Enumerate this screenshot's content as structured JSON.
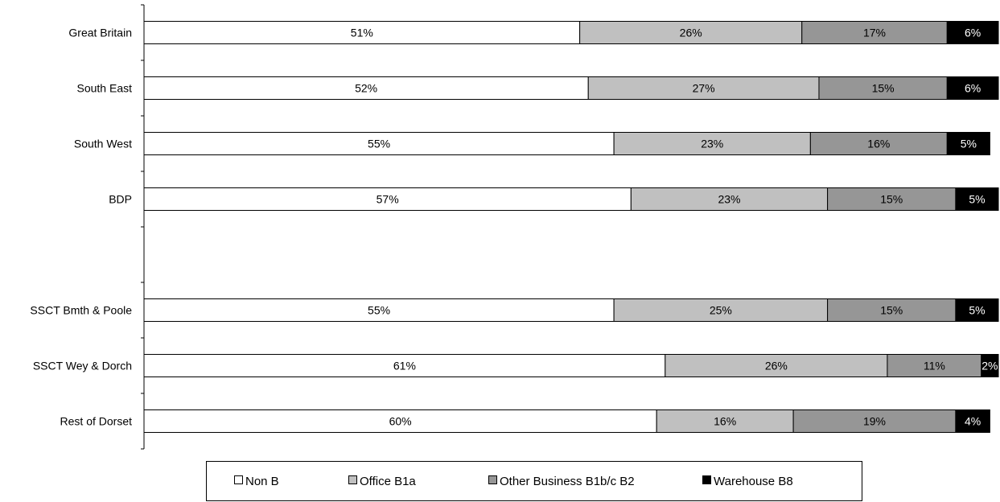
{
  "chart_data": {
    "type": "bar",
    "orientation": "horizontal",
    "stacked": "percent",
    "title": "",
    "xlabel": "",
    "ylabel": "",
    "xlim": [
      0,
      100
    ],
    "grid": false,
    "legend_position": "bottom",
    "categories": [
      "Great Britain",
      "South East",
      "South West",
      "BDP",
      "",
      "SSCT Bmth & Poole",
      "SSCT Wey & Dorch",
      "Rest of Dorset"
    ],
    "series": [
      {
        "name": "Non B",
        "color": "#ffffff",
        "text_color": "#000000",
        "values": [
          51,
          52,
          55,
          57,
          null,
          55,
          61,
          60
        ],
        "labels": [
          "51%",
          "52%",
          "55%",
          "57%",
          "",
          "55%",
          "61%",
          "60%"
        ]
      },
      {
        "name": "Office B1a",
        "color": "#c0c0c0",
        "text_color": "#000000",
        "values": [
          26,
          27,
          23,
          23,
          null,
          25,
          26,
          16
        ],
        "labels": [
          "26%",
          "27%",
          "23%",
          "23%",
          "",
          "25%",
          "26%",
          "16%"
        ]
      },
      {
        "name": "Other Business B1b/c B2",
        "color": "#969696",
        "text_color": "#000000",
        "values": [
          17,
          15,
          16,
          15,
          null,
          15,
          11,
          19
        ],
        "labels": [
          "17%",
          "15%",
          "16%",
          "15%",
          "",
          "15%",
          "11%",
          "19%"
        ]
      },
      {
        "name": "Warehouse B8",
        "color": "#000000",
        "text_color": "#ffffff",
        "values": [
          6,
          6,
          5,
          5,
          null,
          5,
          2,
          4
        ],
        "labels": [
          "6%",
          "6%",
          "5%",
          "5%",
          "",
          "5%",
          "2%",
          "4%"
        ]
      }
    ]
  },
  "legend": {
    "items": [
      {
        "label": "Non B",
        "color": "#ffffff"
      },
      {
        "label": "Office B1a",
        "color": "#c0c0c0"
      },
      {
        "label": "Other Business B1b/c B2",
        "color": "#969696"
      },
      {
        "label": "Warehouse B8",
        "color": "#000000"
      }
    ]
  }
}
